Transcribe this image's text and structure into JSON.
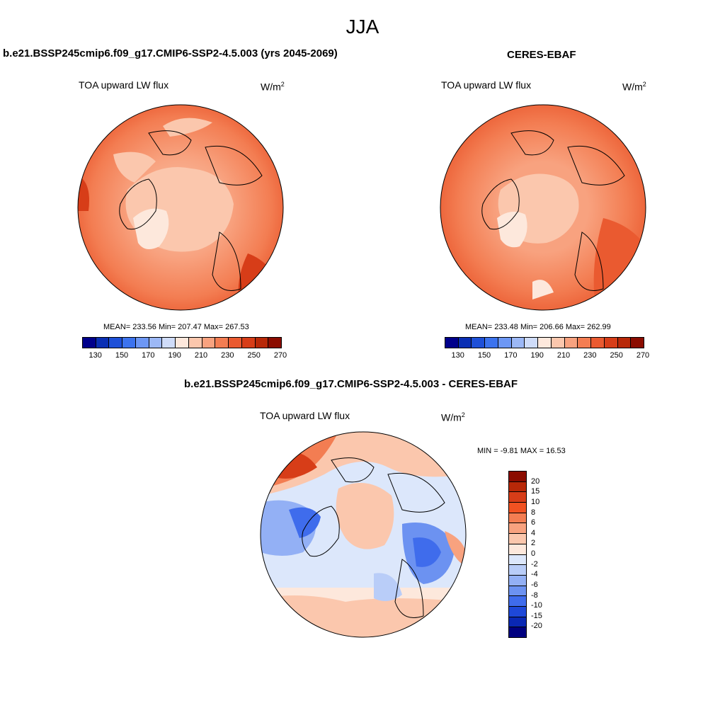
{
  "title": "JJA",
  "panels": {
    "model": {
      "title": "b.e21.BSSP245cmip6.f09_g17.CMIP6-SSP2-4.5.003 (yrs 2045-2069)",
      "var_label": "TOA upward LW flux",
      "units": "W/m",
      "units_sup": "2",
      "stats": "MEAN= 233.56  Min= 207.47  Max= 267.53"
    },
    "obs": {
      "title": "CERES-EBAF",
      "var_label": "TOA upward LW flux",
      "units": "W/m",
      "units_sup": "2",
      "stats": "MEAN= 233.48  Min= 206.66  Max= 262.99"
    },
    "diff": {
      "title": "b.e21.BSSP245cmip6.f09_g17.CMIP6-SSP2-4.5.003 - CERES-EBAF",
      "var_label": "TOA upward LW flux",
      "units": "W/m",
      "units_sup": "2",
      "stats": "MIN =  -9.81 MAX =  16.53"
    }
  },
  "colorbar_main": {
    "colors": [
      "#00008b",
      "#0a2fb4",
      "#1e50d8",
      "#3c73ee",
      "#6d97f4",
      "#9cb8f6",
      "#cfdcf9",
      "#fde8dc",
      "#fbc7ad",
      "#f8a27f",
      "#f37d52",
      "#ea5a30",
      "#d73d18",
      "#b82808",
      "#8b0c00"
    ],
    "tick_labels": [
      "130",
      "150",
      "170",
      "190",
      "210",
      "230",
      "250",
      "270"
    ]
  },
  "colorbar_diff": {
    "colors": [
      "#8b0c00",
      "#b82808",
      "#d73d18",
      "#f05222",
      "#f37d52",
      "#f8a27f",
      "#fbc7ad",
      "#fde8dc",
      "#dce7fb",
      "#b9cdf8",
      "#93b0f5",
      "#6c92f1",
      "#3f6cec",
      "#1e48d8",
      "#0a28b4",
      "#000080"
    ],
    "tick_labels": [
      "20",
      "15",
      "10",
      "8",
      "6",
      "4",
      "2",
      "0",
      "-2",
      "-4",
      "-6",
      "-8",
      "-10",
      "-15",
      "-20"
    ]
  }
}
